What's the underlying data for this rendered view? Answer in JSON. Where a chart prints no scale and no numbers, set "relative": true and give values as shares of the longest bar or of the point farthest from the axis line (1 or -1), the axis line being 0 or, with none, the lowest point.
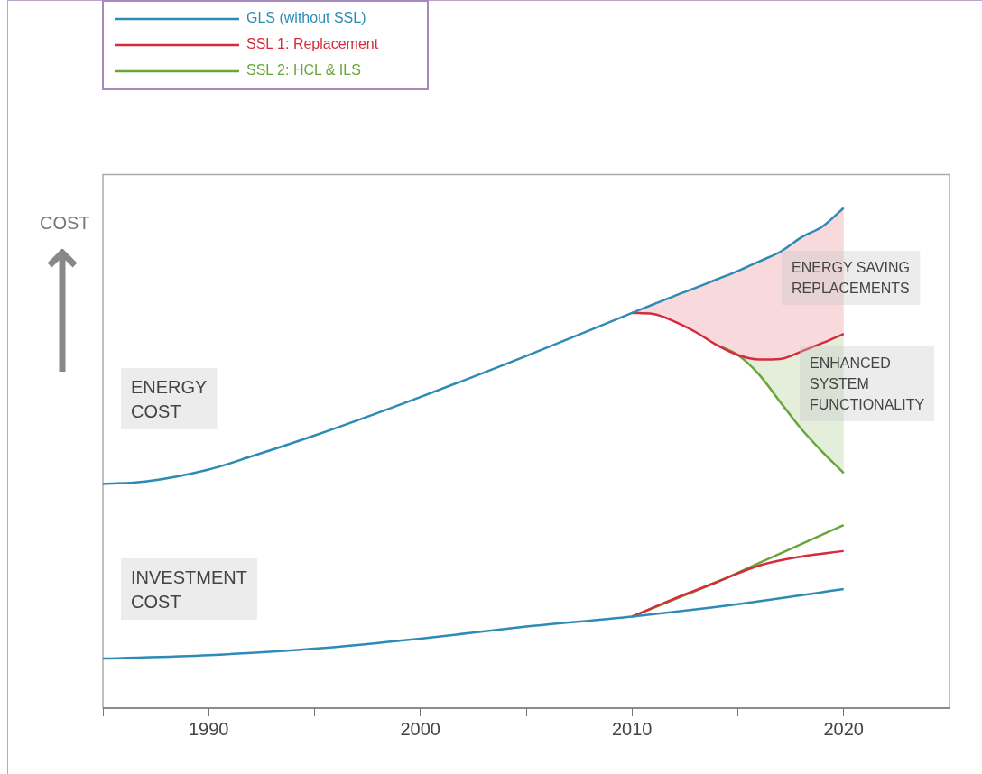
{
  "chart_data": {
    "type": "line",
    "relative": true,
    "ylabel": "COST",
    "legend": "top left",
    "grid": false,
    "marker": "none",
    "line_style": "solid",
    "xlim": [
      1985,
      2025
    ],
    "xticks": [
      {
        "value": 1985,
        "label": null
      },
      1990,
      {
        "value": 1995,
        "label": null
      },
      2000,
      {
        "value": 2005,
        "label": null
      },
      2010,
      {
        "value": 2015,
        "label": null
      },
      2020,
      {
        "value": 2025,
        "label": null
      }
    ],
    "series": [
      {
        "name": "GLS (without SSL)",
        "color": "#2e8bb5",
        "x": [
          1985,
          1987,
          1990,
          1992,
          1995,
          2000,
          2005,
          2010,
          2011,
          2012,
          2013,
          2014,
          2015,
          2016,
          2017,
          2018,
          2019,
          2020
        ],
        "values": [
          0.448,
          0.453,
          0.477,
          0.503,
          0.545,
          0.622,
          0.704,
          0.79,
          0.807,
          0.824,
          0.84,
          0.857,
          0.874,
          0.893,
          0.912,
          0.941,
          0.963,
          1.0
        ]
      },
      {
        "name": "SSL 1: Replacement",
        "color": "#d62b3c",
        "x": [
          2010,
          2011,
          2012,
          2013,
          2014,
          2015,
          2016,
          2017,
          2018,
          2019,
          2020
        ],
        "values": [
          0.79,
          0.788,
          0.773,
          0.752,
          0.726,
          0.706,
          0.697,
          0.698,
          0.713,
          0.73,
          0.748
        ],
        "lower": [
          0.79,
          0.788,
          0.773,
          0.752,
          0.726,
          0.706,
          0.697,
          0.698,
          0.713,
          0.73,
          0.748
        ],
        "upper": [
          0.79,
          0.807,
          0.824,
          0.84,
          0.857,
          0.874,
          0.893,
          0.912,
          0.941,
          0.963,
          1.0
        ]
      },
      {
        "name": "SSL 2: HCL & ILS",
        "color": "#6aa53a",
        "x": [
          2014,
          2015,
          2016,
          2017,
          2018,
          2019,
          2020
        ],
        "values": [
          0.726,
          0.706,
          0.667,
          0.612,
          0.558,
          0.512,
          0.47
        ],
        "lower": [
          0.726,
          0.706,
          0.667,
          0.612,
          0.558,
          0.512,
          0.47
        ],
        "upper": [
          0.726,
          0.706,
          0.697,
          0.698,
          0.713,
          0.73,
          0.748
        ]
      },
      {
        "color": "#2e8bb5",
        "x": [
          1985,
          1990,
          1995,
          2000,
          2005,
          2010,
          2015,
          2020
        ],
        "values": [
          0.099,
          0.106,
          0.119,
          0.139,
          0.163,
          0.183,
          0.208,
          0.238
        ]
      },
      {
        "color": "#d62b3c",
        "x": [
          2010,
          2012,
          2014,
          2016,
          2018,
          2020
        ],
        "values": [
          0.183,
          0.219,
          0.252,
          0.285,
          0.303,
          0.314
        ]
      },
      {
        "color": "#6aa53a",
        "x": [
          2010,
          2014,
          2016,
          2018,
          2020
        ],
        "values": [
          0.183,
          0.252,
          0.29,
          0.328,
          0.366
        ]
      }
    ],
    "annotations": [
      "ENERGY\nCOST",
      "INVESTMENT\nCOST",
      "ENERGY SAVING\nREPLACEMENTS",
      "ENHANCED\nSYSTEM\nFUNCTIONALITY"
    ]
  }
}
